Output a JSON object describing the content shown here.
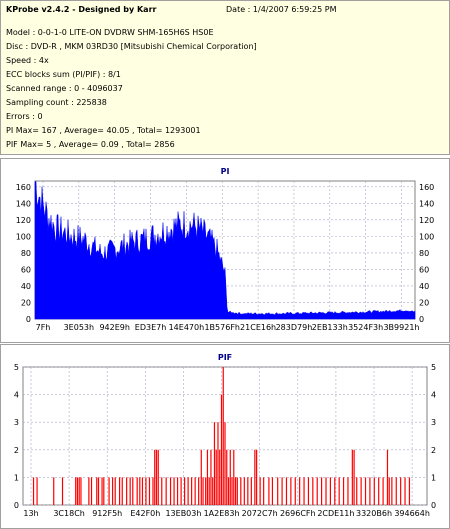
{
  "info": {
    "app_title": "KProbe v2.4.2 - Designed by Karr",
    "date": "Date : 1/4/2007 6:59:25 PM",
    "drive": "Model : 0-0-1-0 LITE-ON DVDRW SHM-165H6S HS0E",
    "disc": "Disc : DVD-R , MKM 03RD30  [Mitsubishi Chemical Corporation]",
    "speed": "Speed : 4x",
    "ecc": "ECC blocks sum (PI/PIF) : 8/1",
    "range": "Scanned range : 0 - 4096037",
    "sampling": "Sampling count : 225838",
    "errors": "Errors : 0",
    "pi_summary": "PI Max= 167 , Average= 40.05 , Total= 1293001",
    "pif_summary": "PIF Max= 5 , Average= 0.09 , Total= 2856"
  },
  "chart_data": [
    {
      "type": "area",
      "title": "PI",
      "ylim": [
        0,
        167
      ],
      "y_ticks": [
        0,
        20,
        40,
        60,
        80,
        100,
        120,
        140,
        160
      ],
      "x_tick_labels": [
        "7Fh",
        "3E053h",
        "942E9h",
        "ED3E7h",
        "14E470h",
        "1B576Fh",
        "21CE16h",
        "283D79h",
        "2EB133h",
        "3524F3h",
        "3B9921h"
      ],
      "grid": true,
      "color": "#0000ff",
      "profile": [
        [
          0,
          167
        ],
        [
          0.5,
          150
        ],
        [
          1.5,
          125
        ],
        [
          2.5,
          110
        ],
        [
          3.5,
          105
        ],
        [
          4.5,
          100
        ],
        [
          5.5,
          98
        ],
        [
          6.2,
          95
        ],
        [
          7,
          88
        ],
        [
          8,
          80
        ],
        [
          9,
          82
        ],
        [
          10,
          86
        ],
        [
          11,
          90
        ],
        [
          12,
          94
        ],
        [
          13,
          96
        ],
        [
          14,
          100
        ],
        [
          15,
          104
        ],
        [
          16,
          108
        ],
        [
          17,
          112
        ],
        [
          18,
          115
        ],
        [
          19,
          114
        ],
        [
          20,
          108
        ],
        [
          21,
          98
        ],
        [
          22,
          84
        ],
        [
          23,
          55
        ],
        [
          23.3,
          8
        ],
        [
          25,
          6
        ],
        [
          30,
          6
        ],
        [
          35,
          7
        ],
        [
          40,
          8
        ],
        [
          43,
          9
        ],
        [
          45,
          10
        ],
        [
          46,
          8
        ]
      ],
      "x_span": 46
    },
    {
      "type": "bar",
      "title": "PIF",
      "ylim": [
        0,
        5
      ],
      "y_ticks": [
        0,
        1,
        2,
        3,
        4,
        5
      ],
      "x_tick_labels": [
        "13h",
        "3C18Ch",
        "912F5h",
        "E42F0h",
        "13EB03h",
        "1A2E83h",
        "2072C7h",
        "2696CFh",
        "2CDE11h",
        "3320B6h",
        "394664h"
      ],
      "grid": true,
      "color": "#ff0000",
      "x_span": 46,
      "values_positions": [
        [
          1.2,
          1
        ],
        [
          1.6,
          1
        ],
        [
          3.5,
          1
        ],
        [
          4.5,
          1
        ],
        [
          6,
          1
        ],
        [
          6.2,
          1
        ],
        [
          6.4,
          1
        ],
        [
          6.6,
          1
        ],
        [
          7.5,
          1
        ],
        [
          7.8,
          1
        ],
        [
          8.4,
          1
        ],
        [
          8.6,
          1
        ],
        [
          9,
          1
        ],
        [
          9.2,
          1
        ],
        [
          9.8,
          1
        ],
        [
          10.2,
          1
        ],
        [
          10.5,
          1
        ],
        [
          11,
          1
        ],
        [
          11.3,
          1
        ],
        [
          11.8,
          1
        ],
        [
          12.2,
          1
        ],
        [
          12.5,
          1
        ],
        [
          13,
          1
        ],
        [
          13.3,
          1
        ],
        [
          13.6,
          1
        ],
        [
          14,
          1
        ],
        [
          14.4,
          1
        ],
        [
          14.8,
          1
        ],
        [
          15,
          2
        ],
        [
          15.2,
          2
        ],
        [
          15.4,
          2
        ],
        [
          15.8,
          1
        ],
        [
          16.3,
          1
        ],
        [
          16.8,
          1
        ],
        [
          17.2,
          1
        ],
        [
          17.6,
          1
        ],
        [
          18,
          1
        ],
        [
          18.4,
          1
        ],
        [
          18.8,
          1
        ],
        [
          19.2,
          1
        ],
        [
          19.6,
          1
        ],
        [
          20,
          1
        ],
        [
          20.3,
          2
        ],
        [
          20.5,
          1
        ],
        [
          20.8,
          1
        ],
        [
          21,
          2
        ],
        [
          21.2,
          1
        ],
        [
          21.4,
          2
        ],
        [
          21.6,
          1
        ],
        [
          21.8,
          3
        ],
        [
          22,
          2
        ],
        [
          22.2,
          3
        ],
        [
          22.4,
          2
        ],
        [
          22.6,
          4
        ],
        [
          22.8,
          5
        ],
        [
          23,
          3
        ],
        [
          23.2,
          2
        ],
        [
          23.4,
          1
        ],
        [
          23.6,
          2
        ],
        [
          23.8,
          1
        ],
        [
          24,
          2
        ],
        [
          24.2,
          1
        ],
        [
          24.4,
          1
        ],
        [
          24.8,
          1
        ],
        [
          25.2,
          1
        ],
        [
          25.6,
          1
        ],
        [
          26,
          1
        ],
        [
          26.4,
          2
        ],
        [
          26.6,
          2
        ],
        [
          27,
          1
        ],
        [
          27.4,
          1
        ],
        [
          28,
          1
        ],
        [
          28.4,
          1
        ],
        [
          29,
          1
        ],
        [
          29.5,
          1
        ],
        [
          30,
          1
        ],
        [
          30.5,
          1
        ],
        [
          31,
          1
        ],
        [
          31.5,
          1
        ],
        [
          32,
          1
        ],
        [
          32.5,
          1
        ],
        [
          33,
          1
        ],
        [
          33.5,
          1
        ],
        [
          34,
          1
        ],
        [
          34.5,
          1
        ],
        [
          35,
          1
        ],
        [
          35.5,
          1
        ],
        [
          36,
          1
        ],
        [
          36.5,
          1
        ],
        [
          37,
          1
        ],
        [
          37.5,
          2
        ],
        [
          37.7,
          2
        ],
        [
          38,
          1
        ],
        [
          38.5,
          1
        ],
        [
          39,
          1
        ],
        [
          39.5,
          1
        ],
        [
          40,
          1
        ],
        [
          40.5,
          1
        ],
        [
          41,
          1
        ],
        [
          41.5,
          2
        ],
        [
          41.7,
          1
        ],
        [
          42,
          1
        ],
        [
          42.5,
          1
        ],
        [
          43,
          1
        ],
        [
          43.5,
          1
        ],
        [
          44,
          1
        ]
      ]
    }
  ]
}
